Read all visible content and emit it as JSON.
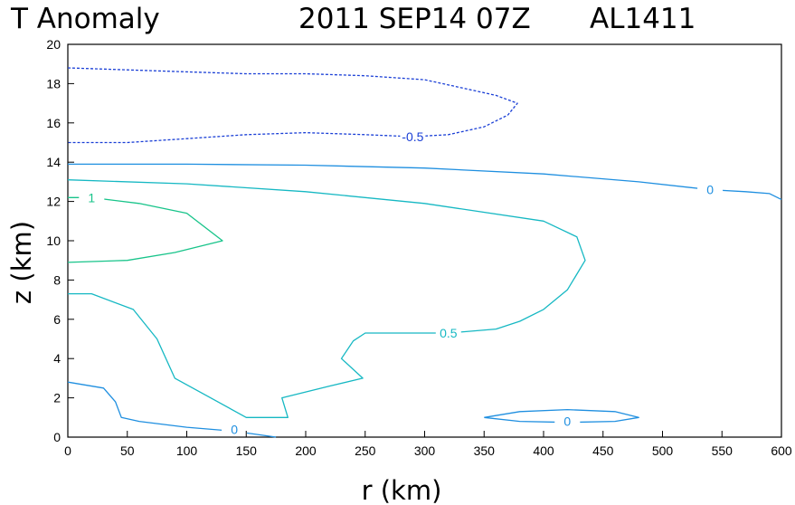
{
  "title": {
    "field": "T Anomaly",
    "datetime": "2011 SEP14 07Z",
    "storm": "AL1411"
  },
  "chart_data": {
    "type": "contour",
    "title": "T Anomaly   2011 SEP14 07Z   AL1411",
    "xlabel": "r (km)",
    "ylabel": "z (km)",
    "xlim": [
      0,
      600
    ],
    "ylim": [
      0,
      20
    ],
    "xticks": [
      "0",
      "50",
      "100",
      "150",
      "200",
      "250",
      "300",
      "350",
      "400",
      "450",
      "500",
      "550",
      "600"
    ],
    "yticks": [
      "0",
      "2",
      "4",
      "6",
      "8",
      "10",
      "12",
      "14",
      "16",
      "18",
      "20"
    ],
    "contours": [
      {
        "level": -0.5,
        "label": "-0.5",
        "color": "#1a3fd6",
        "dashed": true,
        "label_at": [
          290,
          15.3
        ],
        "points": [
          [
            0,
            18.8
          ],
          [
            50,
            18.7
          ],
          [
            100,
            18.6
          ],
          [
            150,
            18.5
          ],
          [
            200,
            18.5
          ],
          [
            250,
            18.4
          ],
          [
            300,
            18.2
          ],
          [
            330,
            17.8
          ],
          [
            360,
            17.4
          ],
          [
            378,
            17.0
          ],
          [
            370,
            16.4
          ],
          [
            350,
            15.8
          ],
          [
            320,
            15.4
          ],
          [
            290,
            15.3
          ],
          [
            250,
            15.4
          ],
          [
            200,
            15.5
          ],
          [
            150,
            15.4
          ],
          [
            100,
            15.2
          ],
          [
            50,
            15.0
          ],
          [
            0,
            15.0
          ]
        ]
      },
      {
        "level": 0,
        "label": "0",
        "color": "#1f8fe0",
        "dashed": false,
        "label_at": [
          540,
          12.6
        ],
        "points": [
          [
            0,
            13.9
          ],
          [
            100,
            13.9
          ],
          [
            200,
            13.85
          ],
          [
            300,
            13.7
          ],
          [
            400,
            13.4
          ],
          [
            480,
            13.0
          ],
          [
            540,
            12.6
          ],
          [
            570,
            12.5
          ],
          [
            590,
            12.4
          ],
          [
            600,
            12.1
          ]
        ]
      },
      {
        "level": 0.5,
        "label": "0.5",
        "color": "#16b8c3",
        "dashed": false,
        "label_at": [
          320,
          5.3
        ],
        "points": [
          [
            0,
            13.1
          ],
          [
            100,
            12.9
          ],
          [
            200,
            12.5
          ],
          [
            300,
            11.9
          ],
          [
            400,
            11.0
          ],
          [
            428,
            10.2
          ],
          [
            435,
            9.0
          ],
          [
            420,
            7.5
          ],
          [
            400,
            6.5
          ],
          [
            380,
            5.9
          ],
          [
            360,
            5.5
          ],
          [
            320,
            5.3
          ],
          [
            250,
            5.3
          ],
          [
            240,
            4.9
          ],
          [
            230,
            4.0
          ],
          [
            248,
            3.0
          ],
          [
            220,
            2.6
          ],
          [
            180,
            2.0
          ],
          [
            185,
            1.0
          ],
          [
            150,
            1.0
          ],
          [
            120,
            2.0
          ],
          [
            90,
            3.0
          ],
          [
            75,
            5.0
          ],
          [
            55,
            6.5
          ],
          [
            20,
            7.3
          ],
          [
            0,
            7.3
          ]
        ]
      },
      {
        "level": 1.0,
        "label": "1",
        "color": "#18c48a",
        "dashed": false,
        "label_at": [
          20,
          12.2
        ],
        "points": [
          [
            0,
            12.2
          ],
          [
            20,
            12.2
          ],
          [
            60,
            11.9
          ],
          [
            100,
            11.4
          ],
          [
            130,
            10.0
          ],
          [
            90,
            9.4
          ],
          [
            50,
            9.0
          ],
          [
            0,
            8.9
          ]
        ]
      },
      {
        "level": 0,
        "label": "0",
        "color": "#1f8fe0",
        "dashed": false,
        "label_at": [
          140,
          0.4
        ],
        "points": [
          [
            0,
            2.8
          ],
          [
            30,
            2.5
          ],
          [
            40,
            1.8
          ],
          [
            45,
            1.0
          ],
          [
            60,
            0.8
          ],
          [
            100,
            0.5
          ],
          [
            140,
            0.3
          ],
          [
            175,
            0.0
          ]
        ]
      },
      {
        "level": 0,
        "label": "0",
        "color": "#1f8fe0",
        "dashed": false,
        "label_at": [
          420,
          0.8
        ],
        "points": [
          [
            350,
            1.0
          ],
          [
            380,
            1.3
          ],
          [
            420,
            1.4
          ],
          [
            460,
            1.3
          ],
          [
            480,
            1.0
          ],
          [
            460,
            0.8
          ],
          [
            420,
            0.75
          ],
          [
            380,
            0.8
          ],
          [
            350,
            1.0
          ]
        ]
      }
    ]
  }
}
